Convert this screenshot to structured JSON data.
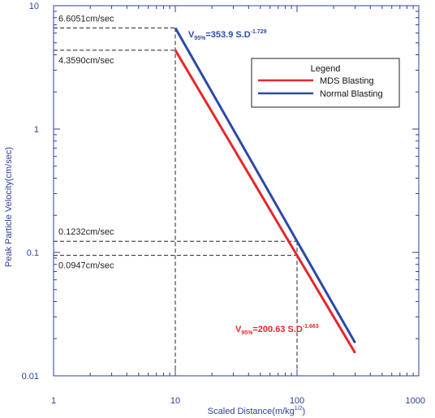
{
  "chart_data": {
    "type": "line",
    "x_scale": "log",
    "y_scale": "log",
    "xlim": [
      1,
      1000
    ],
    "ylim": [
      0.01,
      10
    ],
    "xlabel": "Scaled Distance(m/kg",
    "xlabel_sup": "1/2",
    "xlabel_end": ")",
    "ylabel": "Peak Particle Velocity(cm/sec)",
    "x_ticks": [
      {
        "value": 1,
        "label": "1"
      },
      {
        "value": 10,
        "label": "10"
      },
      {
        "value": 100,
        "label": "100"
      },
      {
        "value": 1000,
        "label": "1000"
      }
    ],
    "y_ticks": [
      {
        "value": 0.01,
        "label": "0.01"
      },
      {
        "value": 0.1,
        "label": "0.1"
      },
      {
        "value": 1,
        "label": "1"
      },
      {
        "value": 10,
        "label": "10"
      }
    ],
    "legend": {
      "title": "Legend",
      "position": "upper-right"
    },
    "series": [
      {
        "name": "MDS Blasting",
        "color": "#e8262a",
        "x": [
          10,
          100,
          300
        ],
        "y": [
          4.359,
          0.0947,
          0.0153
        ],
        "equation": {
          "prefix": "V",
          "sub": "95%",
          "main": "=200.63 S.D",
          "sup": "-1.663"
        }
      },
      {
        "name": "Normal Blasting",
        "color": "#2b4aa8",
        "x": [
          10,
          100,
          300
        ],
        "y": [
          6.6051,
          0.1232,
          0.0185
        ],
        "equation": {
          "prefix": "V",
          "sub": "95%",
          "main": "=353.9 S.D",
          "sup": "-1.729"
        }
      }
    ],
    "reference_lines": [
      {
        "x": 10,
        "y": 6.6051,
        "label": "6.6051cm/sec"
      },
      {
        "x": 10,
        "y": 4.359,
        "label": "4.3590cm/sec"
      },
      {
        "x": 100,
        "y": 0.1232,
        "label": "0.1232cm/sec"
      },
      {
        "x": 100,
        "y": 0.0947,
        "label": "0.0947cm/sec"
      }
    ],
    "grid": false
  }
}
